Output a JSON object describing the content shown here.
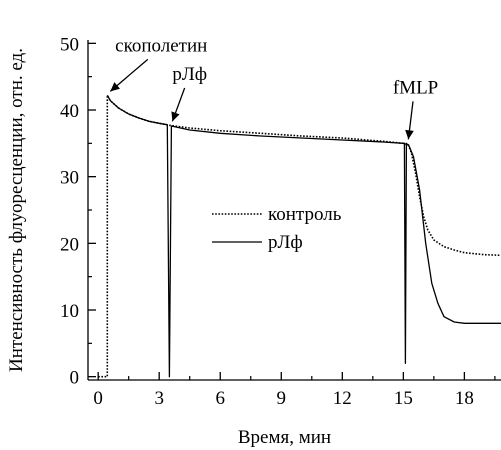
{
  "chart_data": {
    "type": "line",
    "xlabel": "Время, мин",
    "ylabel": "Интенсивность флуоресценции, отн. ед.",
    "xlim": [
      -0.5,
      19.8
    ],
    "ylim": [
      -0.5,
      50.5
    ],
    "x_ticks": [
      0,
      3,
      6,
      9,
      12,
      15,
      18
    ],
    "y_ticks": [
      0,
      10,
      20,
      30,
      40,
      50
    ],
    "grid": false,
    "legend_position": "center-right",
    "series": [
      {
        "name": "контроль",
        "line_style": "dotted",
        "color": "#000000",
        "points": [
          [
            0.0,
            0.0
          ],
          [
            0.45,
            0.0
          ],
          [
            0.45,
            42.2
          ],
          [
            0.6,
            41.4
          ],
          [
            1.0,
            40.3
          ],
          [
            1.5,
            39.4
          ],
          [
            2.0,
            38.8
          ],
          [
            2.5,
            38.3
          ],
          [
            3.0,
            38.0
          ],
          [
            3.5,
            37.7
          ],
          [
            4.5,
            37.3
          ],
          [
            6.0,
            36.9
          ],
          [
            8.0,
            36.5
          ],
          [
            10.0,
            36.1
          ],
          [
            12.0,
            35.8
          ],
          [
            14.0,
            35.3
          ],
          [
            15.0,
            35.0
          ],
          [
            15.25,
            34.8
          ],
          [
            15.4,
            33.5
          ],
          [
            15.6,
            30.5
          ],
          [
            15.8,
            27.0
          ],
          [
            16.0,
            24.0
          ],
          [
            16.2,
            22.0
          ],
          [
            16.5,
            20.5
          ],
          [
            17.0,
            19.5
          ],
          [
            17.5,
            19.0
          ],
          [
            18.0,
            18.6
          ],
          [
            19.0,
            18.3
          ],
          [
            19.8,
            18.2
          ]
        ]
      },
      {
        "name": "рЛф",
        "line_style": "solid",
        "color": "#000000",
        "points": [
          [
            0.45,
            42.2
          ],
          [
            0.6,
            41.4
          ],
          [
            1.0,
            40.3
          ],
          [
            1.5,
            39.4
          ],
          [
            2.0,
            38.8
          ],
          [
            2.5,
            38.3
          ],
          [
            3.0,
            38.0
          ],
          [
            3.4,
            37.8
          ],
          [
            3.5,
            0.0
          ],
          [
            3.6,
            37.6
          ],
          [
            4.5,
            37.0
          ],
          [
            6.0,
            36.5
          ],
          [
            8.0,
            36.1
          ],
          [
            10.0,
            35.8
          ],
          [
            12.0,
            35.5
          ],
          [
            14.0,
            35.2
          ],
          [
            15.0,
            35.0
          ],
          [
            15.05,
            35.0
          ],
          [
            15.1,
            2.0
          ],
          [
            15.15,
            35.0
          ],
          [
            15.3,
            34.5
          ],
          [
            15.5,
            33.0
          ],
          [
            15.8,
            28.0
          ],
          [
            16.1,
            20.0
          ],
          [
            16.4,
            14.0
          ],
          [
            16.7,
            11.0
          ],
          [
            17.0,
            9.0
          ],
          [
            17.5,
            8.2
          ],
          [
            18.0,
            8.0
          ],
          [
            19.8,
            8.0
          ]
        ]
      }
    ],
    "annotations": [
      {
        "text": "скополетин",
        "x": 0.45,
        "y": 42.2,
        "label_x": 3.1,
        "label_y": 48.8
      },
      {
        "text": "рЛф",
        "x": 3.5,
        "y": 37.7,
        "label_x": 4.5,
        "label_y": 44.5
      },
      {
        "text": "fMLP",
        "x": 15.1,
        "y": 35.0,
        "label_x": 15.6,
        "label_y": 42.5
      }
    ]
  }
}
